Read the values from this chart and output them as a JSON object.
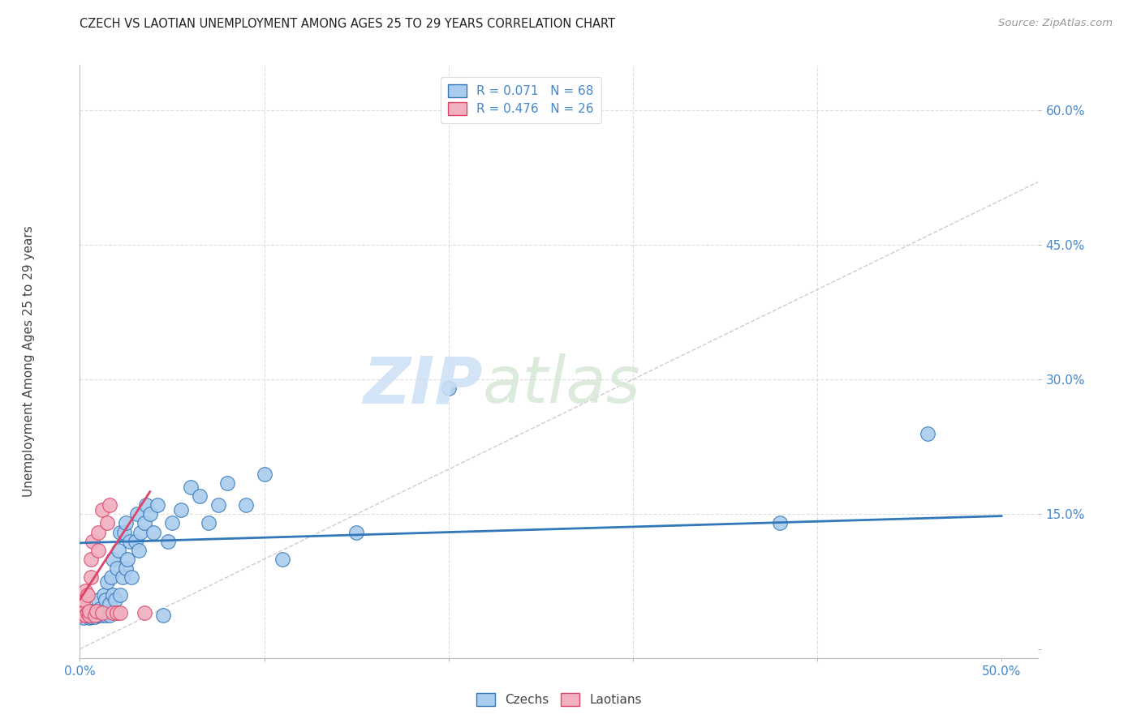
{
  "title": "CZECH VS LAOTIAN UNEMPLOYMENT AMONG AGES 25 TO 29 YEARS CORRELATION CHART",
  "source": "Source: ZipAtlas.com",
  "ylabel": "Unemployment Among Ages 25 to 29 years",
  "xlim": [
    0.0,
    0.52
  ],
  "ylim": [
    -0.01,
    0.65
  ],
  "xticks": [
    0.0,
    0.1,
    0.2,
    0.3,
    0.4,
    0.5
  ],
  "xticklabels": [
    "0.0%",
    "",
    "",
    "",
    "",
    "50.0%"
  ],
  "yticks": [
    0.0,
    0.15,
    0.3,
    0.45,
    0.6
  ],
  "yticklabels": [
    "",
    "15.0%",
    "30.0%",
    "45.0%",
    "60.0%"
  ],
  "legend_r_czech": "R = 0.071",
  "legend_n_czech": "N = 68",
  "legend_r_laotian": "R = 0.476",
  "legend_n_laotian": "N = 26",
  "czech_color": "#aaccee",
  "laotian_color": "#f0b0c0",
  "trend_czech_color": "#3377bb",
  "trend_laotian_color": "#dd4466",
  "diag_color": "#cccccc",
  "background_color": "#ffffff",
  "grid_color": "#dddddd",
  "text_color": "#4488cc",
  "watermark_zip": "ZIP",
  "watermark_atlas": "atlas",
  "czechs_x": [
    0.002,
    0.003,
    0.004,
    0.005,
    0.005,
    0.006,
    0.006,
    0.007,
    0.007,
    0.008,
    0.008,
    0.009,
    0.01,
    0.01,
    0.01,
    0.011,
    0.011,
    0.012,
    0.012,
    0.013,
    0.013,
    0.014,
    0.014,
    0.015,
    0.015,
    0.016,
    0.016,
    0.017,
    0.018,
    0.018,
    0.019,
    0.02,
    0.02,
    0.021,
    0.022,
    0.022,
    0.023,
    0.024,
    0.025,
    0.025,
    0.026,
    0.027,
    0.028,
    0.03,
    0.031,
    0.032,
    0.033,
    0.035,
    0.036,
    0.038,
    0.04,
    0.042,
    0.045,
    0.048,
    0.05,
    0.055,
    0.06,
    0.065,
    0.07,
    0.075,
    0.08,
    0.09,
    0.1,
    0.11,
    0.15,
    0.2,
    0.38,
    0.46
  ],
  "czechs_y": [
    0.035,
    0.04,
    0.038,
    0.042,
    0.035,
    0.036,
    0.04,
    0.038,
    0.042,
    0.036,
    0.04,
    0.038,
    0.038,
    0.042,
    0.055,
    0.04,
    0.045,
    0.038,
    0.042,
    0.04,
    0.06,
    0.038,
    0.055,
    0.04,
    0.075,
    0.038,
    0.05,
    0.08,
    0.06,
    0.1,
    0.055,
    0.04,
    0.09,
    0.11,
    0.06,
    0.13,
    0.08,
    0.13,
    0.09,
    0.14,
    0.1,
    0.12,
    0.08,
    0.12,
    0.15,
    0.11,
    0.13,
    0.14,
    0.16,
    0.15,
    0.13,
    0.16,
    0.038,
    0.12,
    0.14,
    0.155,
    0.18,
    0.17,
    0.14,
    0.16,
    0.185,
    0.16,
    0.195,
    0.1,
    0.13,
    0.29,
    0.14,
    0.24
  ],
  "laotians_x": [
    0.0,
    0.001,
    0.001,
    0.002,
    0.002,
    0.003,
    0.003,
    0.004,
    0.004,
    0.005,
    0.005,
    0.006,
    0.006,
    0.007,
    0.008,
    0.009,
    0.01,
    0.01,
    0.012,
    0.012,
    0.015,
    0.016,
    0.018,
    0.02,
    0.022,
    0.035
  ],
  "laotians_y": [
    0.038,
    0.04,
    0.05,
    0.04,
    0.055,
    0.038,
    0.065,
    0.04,
    0.06,
    0.038,
    0.042,
    0.1,
    0.08,
    0.12,
    0.038,
    0.042,
    0.11,
    0.13,
    0.04,
    0.155,
    0.14,
    0.16,
    0.04,
    0.04,
    0.04,
    0.04
  ],
  "czech_trend_x": [
    0.0,
    0.5
  ],
  "czech_trend_y": [
    0.118,
    0.148
  ],
  "lao_trend_x": [
    0.0,
    0.038
  ],
  "lao_trend_y": [
    0.055,
    0.175
  ]
}
